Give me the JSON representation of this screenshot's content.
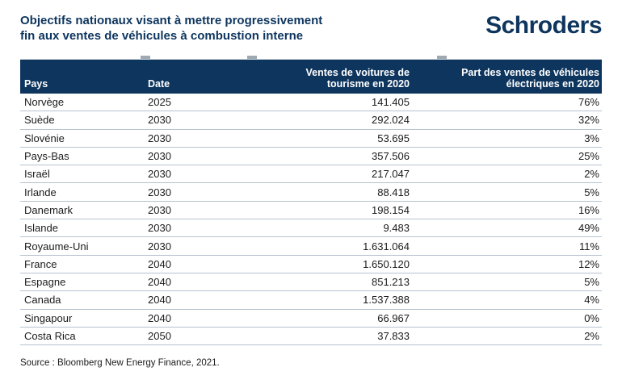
{
  "colors": {
    "navy": "#0e355e",
    "row_divider": "#b6c2ce",
    "header_text": "#ffffff",
    "body_text": "#1b1b1b"
  },
  "header": {
    "title_line1": "Objectifs nationaux visant à mettre progressivement",
    "title_line2": "fin aux ventes de véhicules à combustion interne",
    "logo_text": "Schroders"
  },
  "chart_data": {
    "type": "table",
    "title": "Objectifs nationaux visant à mettre progressivement fin aux ventes de véhicules à combustion interne",
    "columns": [
      "Pays",
      "Date",
      "Ventes de voitures de tourisme en 2020",
      "Part des ventes de véhicules électriques en 2020"
    ],
    "rows": [
      [
        "Norvège",
        "2025",
        "141.405",
        "76%"
      ],
      [
        "Suède",
        "2030",
        "292.024",
        "32%"
      ],
      [
        "Slovénie",
        "2030",
        "53.695",
        "3%"
      ],
      [
        "Pays-Bas",
        "2030",
        "357.506",
        "25%"
      ],
      [
        "Israël",
        "2030",
        "217.047",
        "2%"
      ],
      [
        "Irlande",
        "2030",
        "88.418",
        "5%"
      ],
      [
        "Danemark",
        "2030",
        "198.154",
        "16%"
      ],
      [
        "Islande",
        "2030",
        "9.483",
        "49%"
      ],
      [
        "Royaume-Uni",
        "2030",
        "1.631.064",
        "11%"
      ],
      [
        "France",
        "2040",
        "1.650.120",
        "12%"
      ],
      [
        "Espagne",
        "2040",
        "851.213",
        "5%"
      ],
      [
        "Canada",
        "2040",
        "1.537.388",
        "4%"
      ],
      [
        "Singapour",
        "2040",
        "66.967",
        "0%"
      ],
      [
        "Costa Rica",
        "2050",
        "37.833",
        "2%"
      ]
    ],
    "source": "Source : Bloomberg New Energy Finance, 2021."
  },
  "footer": {
    "source": "Source : Bloomberg New Energy Finance, 2021."
  }
}
